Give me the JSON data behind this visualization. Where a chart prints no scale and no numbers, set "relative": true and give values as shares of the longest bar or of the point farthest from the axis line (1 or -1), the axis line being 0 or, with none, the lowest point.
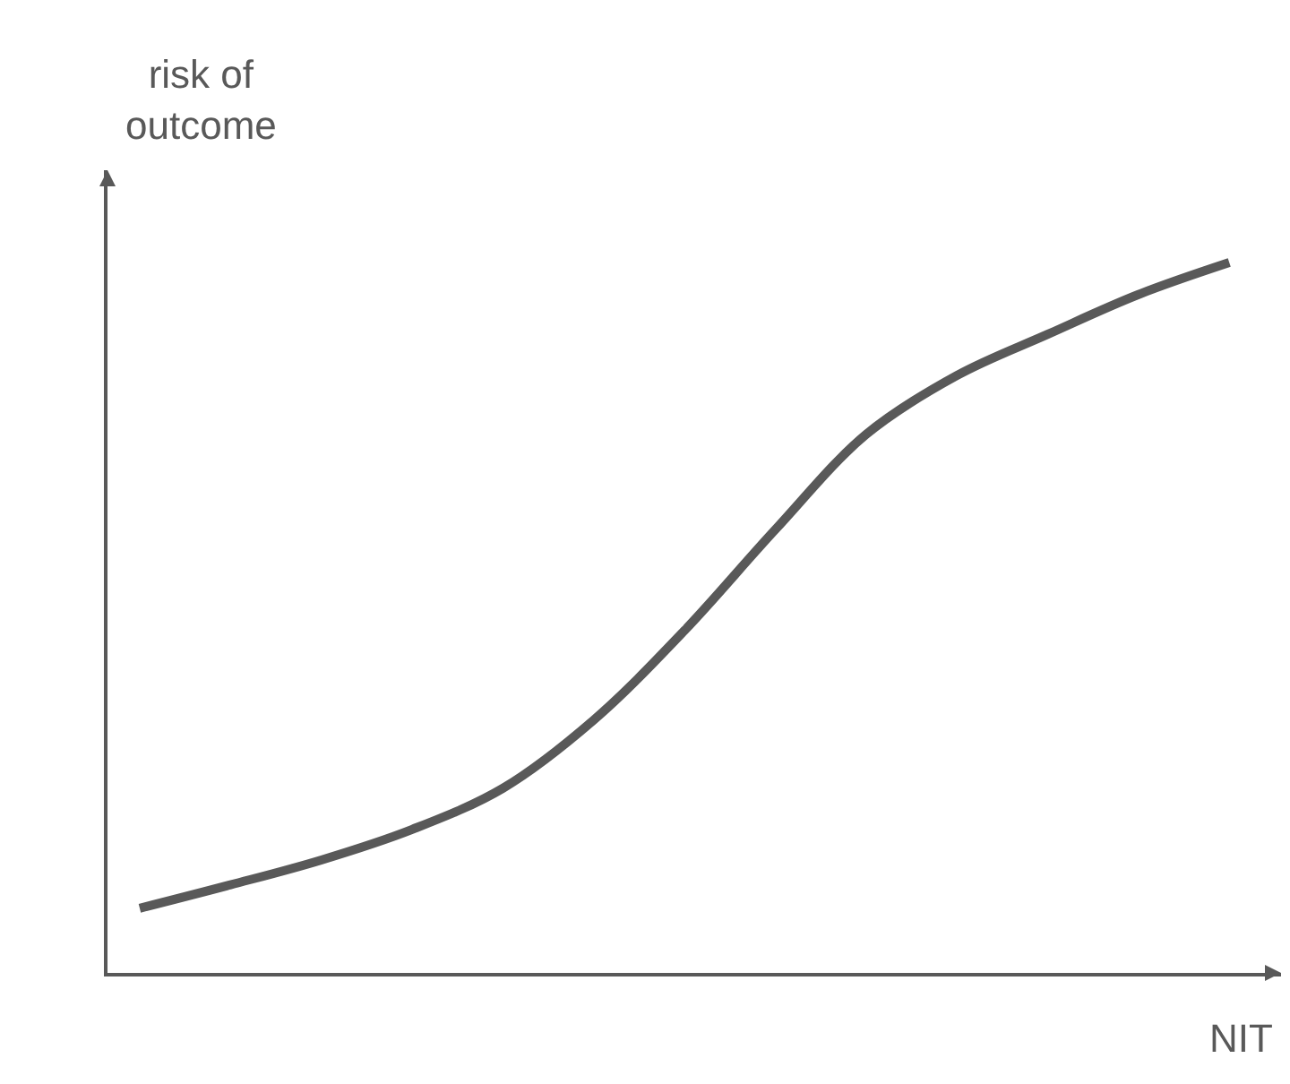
{
  "chart_data": {
    "type": "line",
    "xlabel": "NIT",
    "ylabel": "risk of\noutcome",
    "relative": true,
    "categories": [
      null,
      null,
      null,
      null,
      null,
      null,
      null,
      null,
      null,
      null,
      null,
      null,
      null
    ],
    "series": [
      {
        "color": "#595959",
        "values": [
          0.091,
          0.124,
          0.159,
          0.202,
          0.26,
          0.356,
          0.482,
          0.624,
          0.758,
          0.841,
          0.899,
          0.955,
          1.0
        ]
      }
    ],
    "marker": "none",
    "line_style": "solid"
  }
}
